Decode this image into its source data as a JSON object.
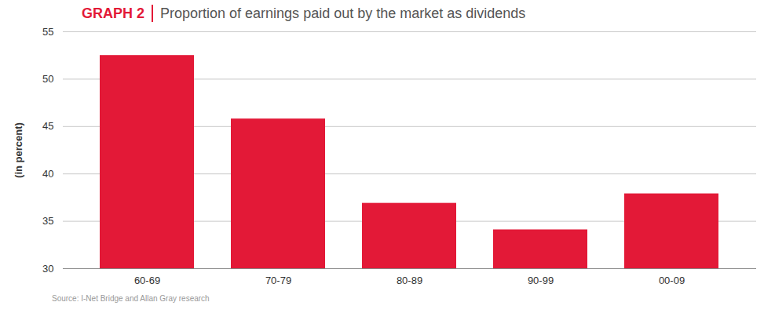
{
  "chart_data": {
    "type": "bar",
    "title": "GRAPH 2",
    "subtitle": "Proportion of earnings paid out by the market as dividends",
    "y_label": "(in percent)",
    "caption": "Source: I-Net Bridge and Allan Gray research",
    "categories": [
      "60-69",
      "70-79",
      "80-89",
      "90-99",
      "00-09"
    ],
    "values": [
      52.5,
      45.8,
      36.9,
      34.1,
      37.9
    ],
    "color": "#e31937",
    "ylim": [
      30,
      55
    ],
    "yticks": [
      30,
      35,
      40,
      45,
      50,
      55
    ],
    "grid": true
  }
}
